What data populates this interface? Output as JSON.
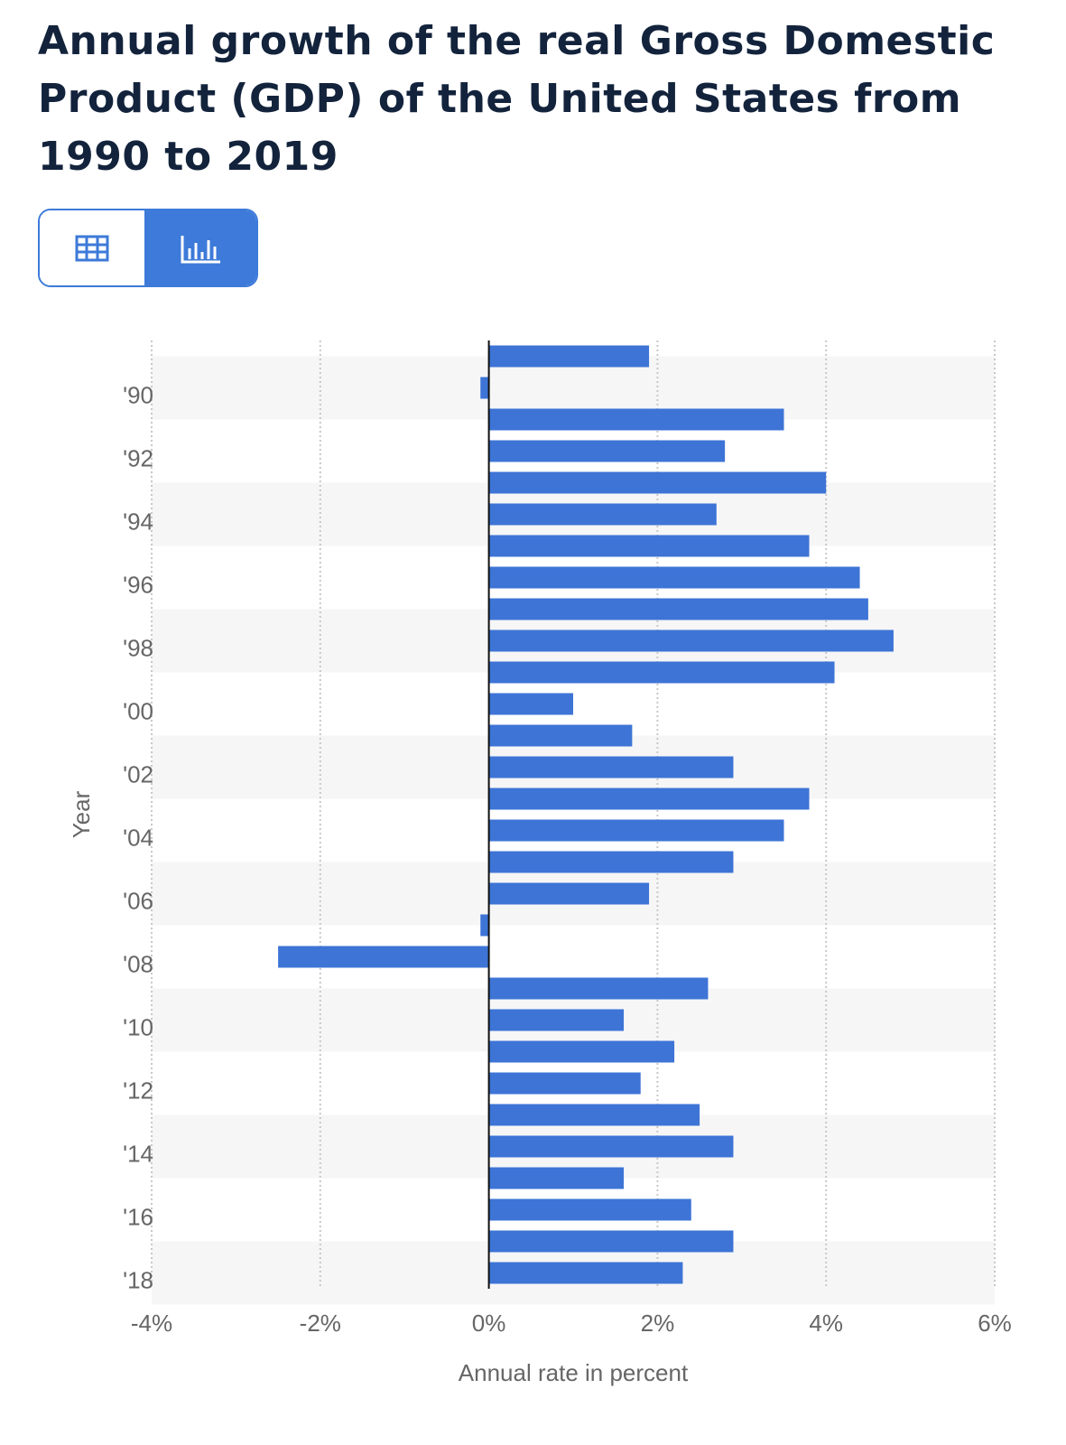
{
  "chart_data": {
    "type": "hbar",
    "title": "Annual growth of the real Gross Domestic Product (GDP) of the United States from 1990 to 2019",
    "y_label": "Year",
    "x_label": "Annual rate in percent",
    "categories": [
      null,
      "'90",
      null,
      "'92",
      null,
      "'94",
      null,
      "'96",
      null,
      "'98",
      null,
      "'00",
      null,
      "'02",
      null,
      "'04",
      null,
      "'06",
      null,
      "'08",
      null,
      "'10",
      null,
      "'12",
      null,
      "'14",
      null,
      "'16",
      null,
      "'18"
    ],
    "values": [
      1.9,
      -0.1,
      3.5,
      2.8,
      4.0,
      2.7,
      3.8,
      4.4,
      4.5,
      4.8,
      4.1,
      1.0,
      1.7,
      2.9,
      3.8,
      3.5,
      2.9,
      1.9,
      -0.1,
      -2.5,
      2.6,
      1.6,
      2.2,
      1.8,
      2.5,
      2.9,
      1.6,
      2.4,
      2.9,
      2.3
    ],
    "color": "#3d74d6",
    "xlim": [
      -4,
      6
    ],
    "xticks": [
      {
        "value": -4,
        "label": "-4%"
      },
      {
        "value": -2,
        "label": "-2%"
      },
      {
        "value": 0,
        "label": "0%"
      },
      {
        "value": 2,
        "label": "2%"
      },
      {
        "value": 4,
        "label": "4%"
      },
      {
        "value": 6,
        "label": "6%"
      }
    ],
    "grid": true
  }
}
